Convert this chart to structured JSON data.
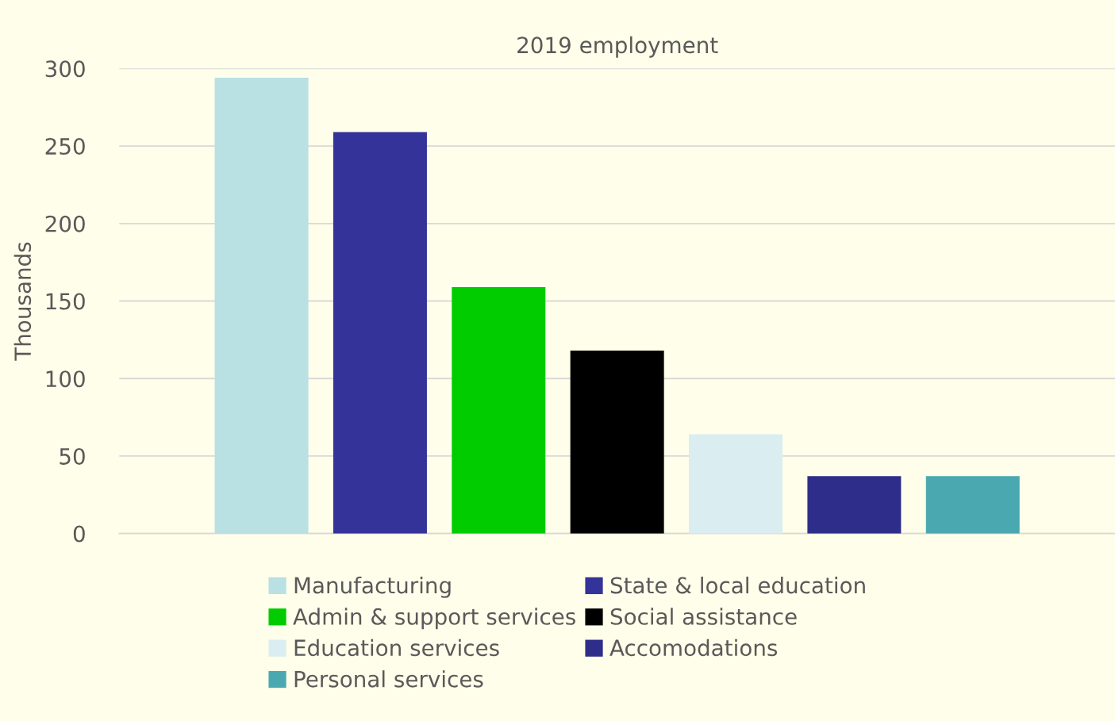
{
  "chart_data": {
    "type": "bar",
    "title": "2019 employment",
    "ylabel": "Thousands",
    "categories": [
      null,
      null,
      null,
      null,
      null,
      null,
      null
    ],
    "series": [
      {
        "name": "Manufacturing",
        "color": "#b9e0e3",
        "values": [
          294,
          null,
          null,
          null,
          null,
          null,
          null
        ]
      },
      {
        "name": "State & local education",
        "color": "#333399",
        "values": [
          null,
          259,
          null,
          null,
          null,
          null,
          null
        ]
      },
      {
        "name": "Admin & support services",
        "color": "#00cc00",
        "values": [
          null,
          null,
          159,
          null,
          null,
          null,
          null
        ]
      },
      {
        "name": "Social assistance",
        "color": "#000000",
        "values": [
          null,
          null,
          null,
          118,
          null,
          null,
          null
        ]
      },
      {
        "name": "Education services",
        "color": "#daedf1",
        "values": [
          null,
          null,
          null,
          null,
          64,
          null,
          null
        ]
      },
      {
        "name": "Accomodations",
        "color": "#2e2e8a",
        "values": [
          null,
          null,
          null,
          null,
          null,
          37,
          null
        ]
      },
      {
        "name": "Personal services",
        "color": "#4aa9b0",
        "values": [
          null,
          null,
          null,
          null,
          null,
          null,
          37
        ]
      }
    ],
    "ylim": [
      0,
      300
    ],
    "yticks": [
      0,
      50,
      100,
      150,
      200,
      250,
      300
    ],
    "grid": "y",
    "legend": "bottom"
  }
}
